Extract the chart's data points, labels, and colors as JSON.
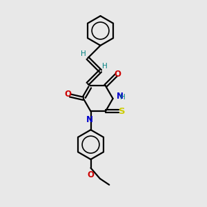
{
  "background_color": "#e8e8e8",
  "bond_color": "#000000",
  "N_color": "#0000cc",
  "O_color": "#cc0000",
  "S_color": "#cccc00",
  "H_color": "#008080",
  "line_width": 1.6,
  "figsize": [
    3.0,
    3.0
  ],
  "dpi": 100,
  "xlim": [
    0,
    10
  ],
  "ylim": [
    0,
    10
  ]
}
